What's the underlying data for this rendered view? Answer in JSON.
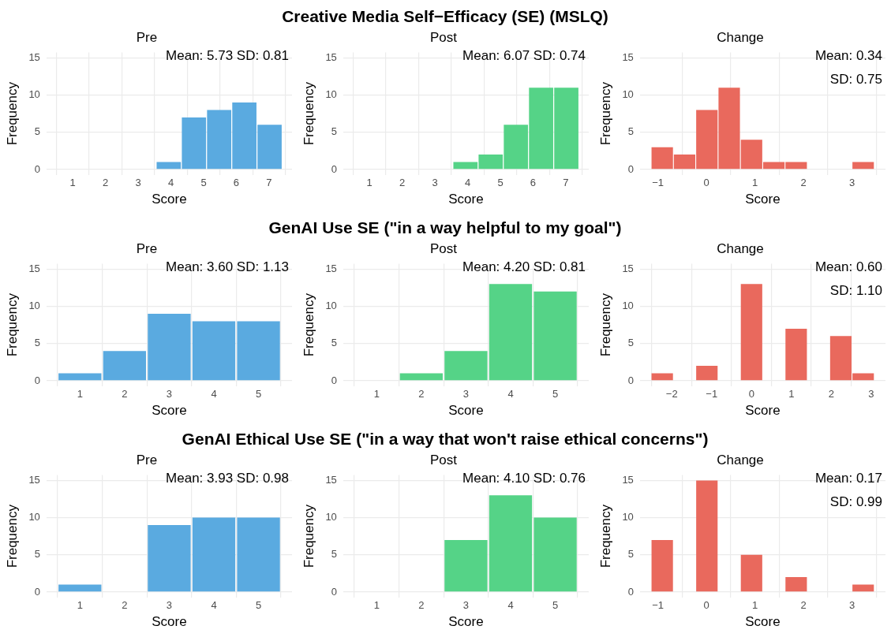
{
  "chart_data": [
    {
      "type": "histogram",
      "subtitle": "Pre",
      "xlabel": "Score",
      "ylabel": "Frequency",
      "color": "#5aaae0",
      "bins": [
        0.47,
        1.24,
        2.01,
        2.78,
        3.55,
        4.32,
        5.09,
        5.86,
        6.63,
        7.4
      ],
      "values": [
        0,
        0,
        0,
        0,
        1,
        7,
        8,
        9,
        6
      ],
      "xlim": [
        0.2,
        7.7
      ],
      "xticks": [
        1,
        2,
        3,
        4,
        5,
        6,
        7
      ],
      "ylim": [
        -0.75,
        15.75
      ],
      "yticks": [
        0,
        5,
        10,
        15
      ],
      "grid": true,
      "annotations": [
        "Mean: 5.73 SD: 0.81"
      ]
    },
    {
      "type": "histogram",
      "title": "Creative Media Self−Efficacy (SE) (MSLQ)",
      "subtitle": "Post",
      "xlabel": "Score",
      "ylabel": "Frequency",
      "color": "#55d387",
      "bins": [
        0.47,
        1.24,
        2.01,
        2.78,
        3.55,
        4.32,
        5.09,
        5.86,
        6.63,
        7.4
      ],
      "values": [
        0,
        0,
        0,
        0,
        1,
        2,
        6,
        11,
        11
      ],
      "xlim": [
        0.2,
        7.7
      ],
      "xticks": [
        1,
        2,
        3,
        4,
        5,
        6,
        7
      ],
      "ylim": [
        -0.75,
        15.75
      ],
      "yticks": [
        0,
        5,
        10,
        15
      ],
      "grid": true,
      "annotations": [
        "Mean: 6.07 SD: 0.74"
      ]
    },
    {
      "type": "histogram",
      "subtitle": "Change",
      "xlabel": "Score",
      "ylabel": "Frequency",
      "color": "#e9695d",
      "bins": [
        -1.14,
        -0.68,
        -0.22,
        0.24,
        0.7,
        1.16,
        1.62,
        2.08,
        2.54,
        3.0,
        3.46
      ],
      "values": [
        3,
        2,
        8,
        11,
        4,
        1,
        1,
        0,
        0,
        1
      ],
      "xlim": [
        -1.37,
        3.69
      ],
      "xticks": [
        -1,
        0,
        1,
        2,
        3
      ],
      "ylim": [
        -0.75,
        15.75
      ],
      "yticks": [
        0,
        5,
        10,
        15
      ],
      "grid": true,
      "annotations": [
        "Mean: 0.34",
        "SD: 0.75"
      ]
    },
    {
      "type": "histogram",
      "subtitle": "Pre",
      "xlabel": "Score",
      "ylabel": "Frequency",
      "color": "#5aaae0",
      "bins": [
        0.5,
        1.5,
        2.5,
        3.5,
        4.5,
        5.5
      ],
      "values": [
        1,
        4,
        9,
        8,
        8
      ],
      "xlim": [
        0.25,
        5.75
      ],
      "xticks": [
        1,
        2,
        3,
        4,
        5
      ],
      "ylim": [
        -0.75,
        15.75
      ],
      "yticks": [
        0,
        5,
        10,
        15
      ],
      "grid": true,
      "annotations": [
        "Mean: 3.60 SD: 1.13"
      ]
    },
    {
      "type": "histogram",
      "title": "GenAI Use SE (\"in a way helpful to my goal\")",
      "subtitle": "Post",
      "xlabel": "Score",
      "ylabel": "Frequency",
      "color": "#55d387",
      "bins": [
        0.5,
        1.5,
        2.5,
        3.5,
        4.5,
        5.5
      ],
      "values": [
        0,
        1,
        4,
        13,
        12
      ],
      "xlim": [
        0.25,
        5.75
      ],
      "xticks": [
        1,
        2,
        3,
        4,
        5
      ],
      "ylim": [
        -0.75,
        15.75
      ],
      "yticks": [
        0,
        5,
        10,
        15
      ],
      "grid": true,
      "annotations": [
        "Mean: 4.20 SD: 0.81"
      ]
    },
    {
      "type": "histogram",
      "subtitle": "Change",
      "xlabel": "Score",
      "ylabel": "Frequency",
      "color": "#e9695d",
      "bins": [
        -2.52,
        -1.96,
        -1.4,
        -0.84,
        -0.28,
        0.28,
        0.84,
        1.4,
        1.96,
        2.52,
        3.08
      ],
      "values": [
        1,
        0,
        2,
        0,
        13,
        0,
        7,
        0,
        6,
        1
      ],
      "xlim": [
        -2.8,
        3.36
      ],
      "xticks": [
        -2,
        -1,
        0,
        1,
        2,
        3
      ],
      "ylim": [
        -0.75,
        15.75
      ],
      "yticks": [
        0,
        5,
        10,
        15
      ],
      "grid": true,
      "annotations": [
        "Mean: 0.60",
        "SD: 1.10"
      ]
    },
    {
      "type": "histogram",
      "subtitle": "Pre",
      "xlabel": "Score",
      "ylabel": "Frequency",
      "color": "#5aaae0",
      "bins": [
        0.5,
        1.5,
        2.5,
        3.5,
        4.5,
        5.5
      ],
      "values": [
        1,
        0,
        9,
        10,
        10
      ],
      "xlim": [
        0.25,
        5.75
      ],
      "xticks": [
        1,
        2,
        3,
        4,
        5
      ],
      "ylim": [
        -0.75,
        15.75
      ],
      "yticks": [
        0,
        5,
        10,
        15
      ],
      "grid": true,
      "annotations": [
        "Mean: 3.93 SD: 0.98"
      ]
    },
    {
      "type": "histogram",
      "title": "GenAI Ethical Use SE (\"in a way that won't raise ethical concerns\")",
      "subtitle": "Post",
      "xlabel": "Score",
      "ylabel": "Frequency",
      "color": "#55d387",
      "bins": [
        0.5,
        1.5,
        2.5,
        3.5,
        4.5,
        5.5
      ],
      "values": [
        0,
        0,
        7,
        13,
        10
      ],
      "xlim": [
        0.25,
        5.75
      ],
      "xticks": [
        1,
        2,
        3,
        4,
        5
      ],
      "ylim": [
        -0.75,
        15.75
      ],
      "yticks": [
        0,
        5,
        10,
        15
      ],
      "grid": true,
      "annotations": [
        "Mean: 4.10 SD: 0.76"
      ]
    },
    {
      "type": "histogram",
      "subtitle": "Change",
      "xlabel": "Score",
      "ylabel": "Frequency",
      "color": "#e9695d",
      "bins": [
        -1.14,
        -0.68,
        -0.22,
        0.24,
        0.7,
        1.16,
        1.62,
        2.08,
        2.54,
        3.0,
        3.46
      ],
      "values": [
        7,
        0,
        15,
        0,
        5,
        0,
        2,
        0,
        0,
        1
      ],
      "xlim": [
        -1.37,
        3.69
      ],
      "xticks": [
        -1,
        0,
        1,
        2,
        3
      ],
      "ylim": [
        -0.75,
        15.75
      ],
      "yticks": [
        0,
        5,
        10,
        15
      ],
      "grid": true,
      "annotations": [
        "Mean: 0.17",
        "SD: 0.99"
      ]
    }
  ]
}
